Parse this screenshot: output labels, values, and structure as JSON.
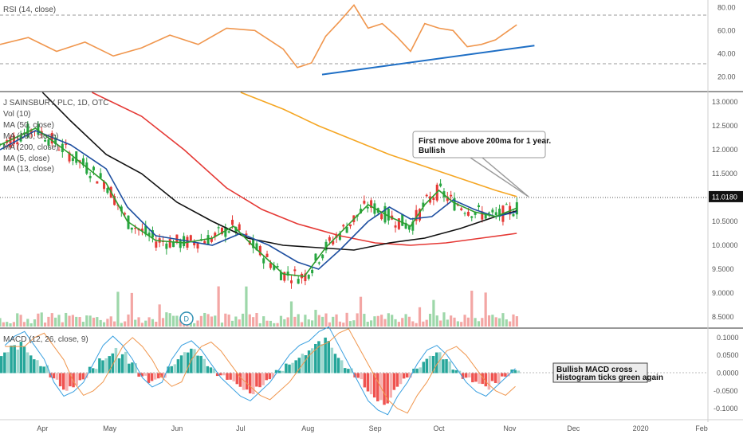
{
  "chart_data": {
    "type": "line",
    "symbol_title": "J SAINSBURY PLC, 1D, OTC",
    "last_price": "11.0180",
    "indicators": {
      "rsi": "RSI (14, close)",
      "vol": "Vol (10)",
      "ma50": "MA (50, close)",
      "ma100": "MA (100, close)",
      "ma200": "MA (200, close)",
      "ma5": "MA (5, close)",
      "ma13": "MA (13, close)",
      "macd": "MACD (12, 26, close, 9)"
    },
    "x_ticks": [
      "Apr",
      "May",
      "Jun",
      "Jul",
      "Aug",
      "Sep",
      "Oct",
      "Nov",
      "Dec",
      "2020",
      "Feb"
    ],
    "price_axis": {
      "ticks": [
        "13.0000",
        "12.5000",
        "12.0000",
        "11.5000",
        "11.0180",
        "10.5000",
        "10.0000",
        "9.5000",
        "9.0000",
        "8.5000"
      ],
      "ylim": [
        8.3,
        13.2
      ]
    },
    "rsi_axis": {
      "ticks": [
        "80.00",
        "60.00",
        "40.00",
        "20.00"
      ],
      "ylim": [
        10,
        85
      ]
    },
    "macd_axis": {
      "ticks": [
        "0.1000",
        "0.0500",
        "0.0000",
        "-0.0500",
        "-0.1000"
      ],
      "ylim": [
        -0.12,
        0.12
      ]
    },
    "annotations": {
      "top_note_line1": "First move above 200ma for 1 year.",
      "top_note_line2": "Bullish",
      "bottom_note_line1": "Bullish MACD cross .",
      "bottom_note_line2": "Histogram ticks green again"
    },
    "series": [
      {
        "name": "MA (200, close)",
        "color": "#f5a623",
        "x": [
          0.34,
          0.4,
          0.45,
          0.5,
          0.55,
          0.6,
          0.65,
          0.7,
          0.73
        ],
        "values": [
          13.2,
          12.85,
          12.5,
          12.2,
          11.9,
          11.65,
          11.4,
          11.15,
          11.02
        ]
      },
      {
        "name": "MA (100, close)",
        "color": "#e53935",
        "x": [
          0.13,
          0.2,
          0.26,
          0.32,
          0.37,
          0.42,
          0.48,
          0.53,
          0.58,
          0.63,
          0.68,
          0.73
        ],
        "values": [
          13.2,
          12.7,
          12.0,
          11.2,
          10.75,
          10.45,
          10.2,
          10.05,
          10.0,
          10.05,
          10.15,
          10.25
        ]
      },
      {
        "name": "MA (50, close)",
        "color": "#111111",
        "x": [
          0.06,
          0.1,
          0.15,
          0.2,
          0.25,
          0.3,
          0.35,
          0.4,
          0.45,
          0.5,
          0.55,
          0.6,
          0.65,
          0.7,
          0.73
        ],
        "values": [
          13.2,
          12.6,
          11.9,
          11.5,
          10.9,
          10.5,
          10.15,
          10.0,
          9.95,
          9.9,
          10.05,
          10.15,
          10.35,
          10.6,
          10.72
        ]
      },
      {
        "name": "MA (13, close)",
        "color": "#1e4fa0",
        "x": [
          0.0,
          0.05,
          0.1,
          0.15,
          0.18,
          0.22,
          0.26,
          0.3,
          0.34,
          0.38,
          0.42,
          0.45,
          0.48,
          0.52,
          0.55,
          0.58,
          0.61,
          0.64,
          0.67,
          0.7,
          0.73
        ],
        "values": [
          12.0,
          12.4,
          12.1,
          11.6,
          10.8,
          10.2,
          10.1,
          10.0,
          10.25,
          10.0,
          9.65,
          9.5,
          9.9,
          10.5,
          10.8,
          10.55,
          10.6,
          10.95,
          10.75,
          10.6,
          10.7
        ]
      },
      {
        "name": "MA (5, close)",
        "color": "#2e9d2e",
        "x": [
          0.0,
          0.05,
          0.1,
          0.15,
          0.18,
          0.22,
          0.26,
          0.3,
          0.33,
          0.36,
          0.4,
          0.43,
          0.46,
          0.49,
          0.52,
          0.55,
          0.58,
          0.6,
          0.62,
          0.64,
          0.67,
          0.7,
          0.73
        ],
        "values": [
          12.1,
          12.45,
          11.9,
          11.3,
          10.5,
          10.1,
          10.05,
          10.15,
          10.4,
          9.95,
          9.4,
          9.35,
          9.95,
          10.4,
          10.85,
          10.6,
          10.4,
          10.85,
          11.15,
          10.9,
          10.7,
          10.6,
          10.78
        ]
      },
      {
        "name": "RSI (14, close)",
        "color": "#f0964d",
        "x": [
          0.0,
          0.04,
          0.08,
          0.12,
          0.16,
          0.2,
          0.24,
          0.28,
          0.32,
          0.36,
          0.4,
          0.42,
          0.44,
          0.46,
          0.48,
          0.5,
          0.52,
          0.54,
          0.56,
          0.58,
          0.6,
          0.62,
          0.64,
          0.66,
          0.68,
          0.7,
          0.73
        ],
        "values": [
          48,
          54,
          42,
          50,
          38,
          45,
          56,
          48,
          62,
          60,
          44,
          28,
          32,
          55,
          68,
          82,
          62,
          66,
          55,
          42,
          66,
          62,
          60,
          46,
          48,
          52,
          65
        ]
      },
      {
        "name": "RSI trendline",
        "color": "#1f6fc5",
        "x": [
          0.455,
          0.755
        ],
        "values": [
          22,
          47
        ]
      }
    ],
    "macd_histogram": [
      0.06,
      0.08,
      0.09,
      0.06,
      0.03,
      -0.02,
      -0.05,
      -0.04,
      -0.02,
      0.02,
      0.06,
      0.08,
      0.06,
      0.03,
      -0.01,
      -0.03,
      -0.02,
      0.03,
      0.06,
      0.07,
      0.05,
      0.02,
      -0.01,
      -0.03,
      -0.05,
      -0.06,
      -0.04,
      -0.02,
      0.01,
      0.04,
      0.06,
      0.07,
      0.09,
      0.1,
      0.06,
      0.02,
      -0.02,
      -0.06,
      -0.08,
      -0.09,
      -0.05,
      -0.02,
      0.02,
      0.05,
      0.06,
      0.04,
      0.01,
      -0.02,
      -0.04,
      -0.05,
      -0.03,
      -0.01,
      0.01
    ]
  }
}
